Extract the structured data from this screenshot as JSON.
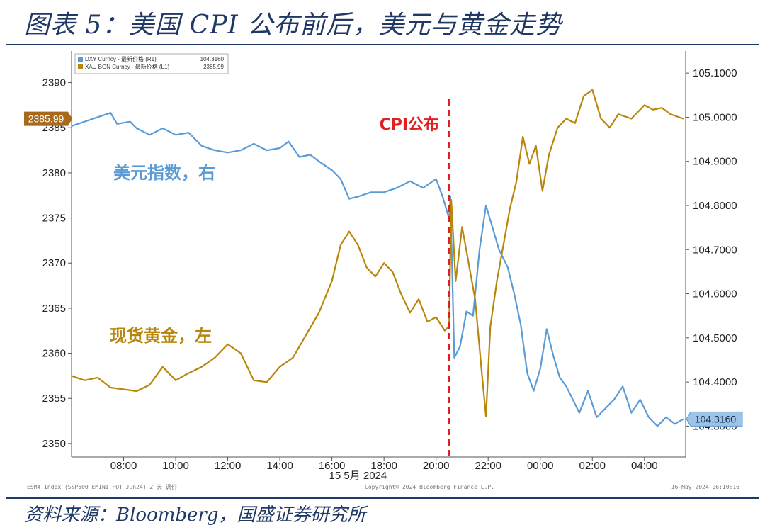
{
  "figure": {
    "title": "图表 5：美国 CPI 公布前后，美元与黄金走势",
    "source": "资料来源：Bloomberg，国盛证券研究所"
  },
  "chart_data": {
    "type": "line",
    "date_label": "15 5月 2024",
    "x_ticks": [
      "08:00",
      "10:00",
      "12:00",
      "14:00",
      "16:00",
      "18:00",
      "20:00",
      "22:00",
      "00:00",
      "02:00",
      "04:00"
    ],
    "xlim": [
      "06:00",
      "05:35"
    ],
    "y_left": {
      "ticks": [
        2390,
        2385,
        2380,
        2375,
        2370,
        2365,
        2360,
        2355,
        2350
      ],
      "range": [
        2348.5,
        2393.5
      ]
    },
    "y_right": {
      "ticks": [
        "105.1000",
        "105.0000",
        "104.9000",
        "104.8000",
        "104.7000",
        "104.6000",
        "104.5000",
        "104.4000",
        "104.3000"
      ],
      "range": [
        104.23,
        105.15
      ]
    },
    "legend": {
      "position": "top-left",
      "items": [
        {
          "label": "DXY Curncy - 最新价格 (R1)",
          "value": "104.3160",
          "color": "#5b9bd5"
        },
        {
          "label": "XAU BGN Curncy - 最新价格 (L1)",
          "value": "2385.99",
          "color": "#b8860b"
        }
      ]
    },
    "last_value_tags": {
      "left": "2385.99",
      "right": "104.3160"
    },
    "annotations": {
      "event_label": "CPI公布",
      "event_time": "20:30",
      "dxy_label": "美元指数，右",
      "gold_label": "现货黄金，左"
    },
    "footer": {
      "left": "ESM4 Index (S&P500 EMINI FUT  Jun24) 2 天  调价",
      "center": "Copyright© 2024 Bloomberg Finance L.P.",
      "right": "16-May-2024 06:10:16"
    },
    "series": [
      {
        "name": "DXY Curncy",
        "axis": "right",
        "color": "#5b9bd5",
        "points": [
          [
            "06:00",
            104.98
          ],
          [
            "07:30",
            105.01
          ],
          [
            "07:45",
            104.985
          ],
          [
            "08:15",
            104.99
          ],
          [
            "08:30",
            104.975
          ],
          [
            "09:00",
            104.96
          ],
          [
            "09:30",
            104.975
          ],
          [
            "10:00",
            104.96
          ],
          [
            "10:30",
            104.965
          ],
          [
            "11:00",
            104.935
          ],
          [
            "11:30",
            104.925
          ],
          [
            "12:00",
            104.92
          ],
          [
            "12:30",
            104.925
          ],
          [
            "13:00",
            104.94
          ],
          [
            "13:30",
            104.925
          ],
          [
            "14:00",
            104.93
          ],
          [
            "14:20",
            104.945
          ],
          [
            "14:45",
            104.91
          ],
          [
            "15:10",
            104.915
          ],
          [
            "15:30",
            104.9
          ],
          [
            "16:00",
            104.88
          ],
          [
            "16:20",
            104.86
          ],
          [
            "16:40",
            104.815
          ],
          [
            "17:00",
            104.82
          ],
          [
            "17:30",
            104.83
          ],
          [
            "18:00",
            104.83
          ],
          [
            "18:30",
            104.84
          ],
          [
            "19:00",
            104.855
          ],
          [
            "19:30",
            104.84
          ],
          [
            "20:00",
            104.86
          ],
          [
            "20:15",
            104.82
          ],
          [
            "20:30",
            104.77
          ],
          [
            "20:33",
            104.82
          ],
          [
            "20:42",
            104.455
          ],
          [
            "20:55",
            104.48
          ],
          [
            "21:10",
            104.56
          ],
          [
            "21:25",
            104.55
          ],
          [
            "21:40",
            104.7
          ],
          [
            "21:55",
            104.8
          ],
          [
            "22:10",
            104.75
          ],
          [
            "22:25",
            104.7
          ],
          [
            "22:45",
            104.66
          ],
          [
            "23:00",
            104.6
          ],
          [
            "23:15",
            104.53
          ],
          [
            "23:30",
            104.42
          ],
          [
            "23:45",
            104.38
          ],
          [
            "00:00",
            104.43
          ],
          [
            "00:15",
            104.52
          ],
          [
            "00:30",
            104.46
          ],
          [
            "00:45",
            104.41
          ],
          [
            "01:00",
            104.39
          ],
          [
            "01:15",
            104.36
          ],
          [
            "01:30",
            104.33
          ],
          [
            "01:50",
            104.38
          ],
          [
            "02:10",
            104.32
          ],
          [
            "02:30",
            104.34
          ],
          [
            "02:50",
            104.36
          ],
          [
            "03:10",
            104.39
          ],
          [
            "03:30",
            104.33
          ],
          [
            "03:50",
            104.36
          ],
          [
            "04:10",
            104.32
          ],
          [
            "04:30",
            104.3
          ],
          [
            "04:50",
            104.32
          ],
          [
            "05:10",
            104.305
          ],
          [
            "05:30",
            104.316
          ]
        ]
      },
      {
        "name": "XAU BGN Curncy",
        "axis": "left",
        "color": "#b8860b",
        "points": [
          [
            "06:00",
            2357.5
          ],
          [
            "06:30",
            2357
          ],
          [
            "07:00",
            2357.3
          ],
          [
            "07:30",
            2356.2
          ],
          [
            "08:00",
            2356
          ],
          [
            "08:30",
            2355.8
          ],
          [
            "09:00",
            2356.5
          ],
          [
            "09:30",
            2358.5
          ],
          [
            "10:00",
            2357
          ],
          [
            "10:30",
            2357.8
          ],
          [
            "11:00",
            2358.5
          ],
          [
            "11:30",
            2359.5
          ],
          [
            "12:00",
            2361
          ],
          [
            "12:30",
            2360
          ],
          [
            "13:00",
            2357
          ],
          [
            "13:30",
            2356.8
          ],
          [
            "14:00",
            2358.5
          ],
          [
            "14:30",
            2359.5
          ],
          [
            "15:00",
            2362
          ],
          [
            "15:30",
            2364.5
          ],
          [
            "16:00",
            2368
          ],
          [
            "16:20",
            2372
          ],
          [
            "16:40",
            2373.5
          ],
          [
            "17:00",
            2372
          ],
          [
            "17:20",
            2369.5
          ],
          [
            "17:40",
            2368.5
          ],
          [
            "18:00",
            2370
          ],
          [
            "18:20",
            2369
          ],
          [
            "18:40",
            2366.5
          ],
          [
            "19:00",
            2364.5
          ],
          [
            "19:20",
            2366
          ],
          [
            "19:40",
            2363.5
          ],
          [
            "20:00",
            2364
          ],
          [
            "20:20",
            2362.5
          ],
          [
            "20:30",
            2363
          ],
          [
            "20:35",
            2377
          ],
          [
            "20:45",
            2368
          ],
          [
            "21:00",
            2374
          ],
          [
            "21:15",
            2370
          ],
          [
            "21:30",
            2366
          ],
          [
            "21:45",
            2358
          ],
          [
            "21:55",
            2353
          ],
          [
            "22:05",
            2363
          ],
          [
            "22:20",
            2368
          ],
          [
            "22:35",
            2372
          ],
          [
            "22:50",
            2376
          ],
          [
            "23:05",
            2379
          ],
          [
            "23:20",
            2384
          ],
          [
            "23:35",
            2381
          ],
          [
            "23:50",
            2383
          ],
          [
            "00:05",
            2378
          ],
          [
            "00:20",
            2382
          ],
          [
            "00:40",
            2385
          ],
          [
            "01:00",
            2386
          ],
          [
            "01:20",
            2385.5
          ],
          [
            "01:40",
            2388.5
          ],
          [
            "02:00",
            2389.2
          ],
          [
            "02:20",
            2386
          ],
          [
            "02:40",
            2385
          ],
          [
            "03:00",
            2386.5
          ],
          [
            "03:30",
            2386
          ],
          [
            "04:00",
            2387.5
          ],
          [
            "04:20",
            2387
          ],
          [
            "04:40",
            2387.2
          ],
          [
            "05:00",
            2386.5
          ],
          [
            "05:30",
            2385.99
          ]
        ]
      }
    ]
  }
}
